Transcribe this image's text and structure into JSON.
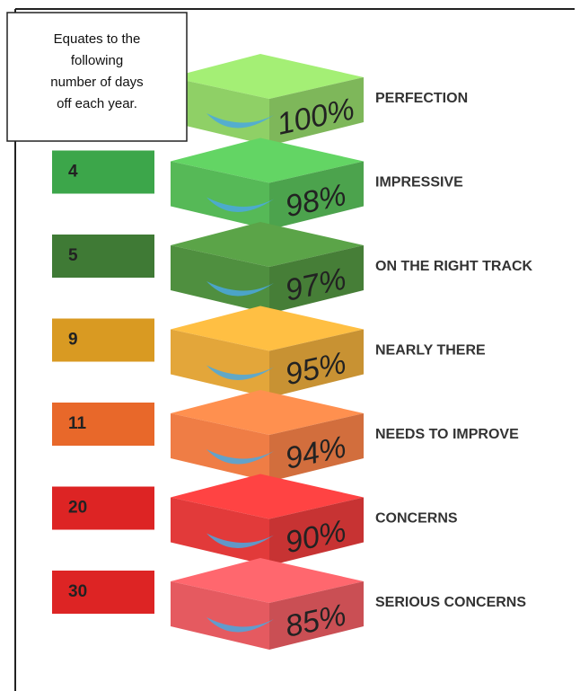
{
  "note": {
    "lines": [
      "Equates to the",
      "following",
      "number of days",
      "off each year."
    ]
  },
  "rows": [
    {
      "percent": "100%",
      "label": "PERFECTION",
      "color": "#8fd066"
    },
    {
      "days": 4,
      "percent": "98%",
      "label": "IMPRESSIVE",
      "color": "#56b957",
      "days_color": "#3ca64a"
    },
    {
      "days": 5,
      "percent": "97%",
      "label": "ON THE RIGHT TRACK",
      "color": "#4f8f3f",
      "days_color": "#3f7a35"
    },
    {
      "days": 9,
      "percent": "95%",
      "label": "NEARLY THERE",
      "color": "#e3a63a",
      "days_color": "#d99a22"
    },
    {
      "days": 11,
      "percent": "94%",
      "label": "NEEDS TO IMPROVE",
      "color": "#ef7d45",
      "days_color": "#e8682a"
    },
    {
      "days": 20,
      "percent": "90%",
      "label": "CONCERNS",
      "color": "#e23a3a",
      "days_color": "#dd2424"
    },
    {
      "days": 30,
      "percent": "85%",
      "label": "SERIOUS CONCERNS",
      "color": "#e55a60",
      "days_color": "#dd2424"
    }
  ]
}
